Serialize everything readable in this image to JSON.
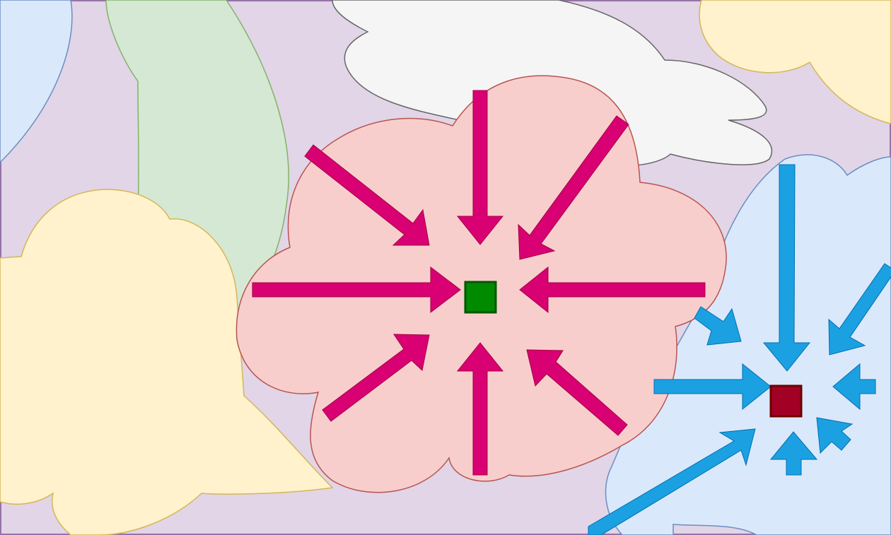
{
  "diagram": {
    "description_colors": {
      "background": "#e1d5e7",
      "background_border": "#9673a6",
      "pink_cloud_fill": "#f8cecc",
      "pink_cloud_stroke": "#b85450",
      "magenta_arrow": "#d80073",
      "magenta_arrow_stroke": "#a50040",
      "green_square": "#008a00",
      "green_square_stroke": "#005700",
      "blue_cloud_fill": "#dae8fc",
      "blue_cloud_stroke": "#6c8ebf",
      "blue_arrow": "#1ba1e2",
      "blue_arrow_stroke": "#006eaf",
      "red_square": "#a20025",
      "red_square_stroke": "#6f0000",
      "yellow_cloud_fill": "#fff2cc",
      "yellow_cloud_stroke": "#d6b656",
      "green_leaf_fill": "#d5e8d4",
      "green_leaf_stroke": "#82b366",
      "white_cloud_fill": "#f5f5f5",
      "white_cloud_stroke": "#666666"
    },
    "targets": [
      {
        "name": "green-target-square",
        "incoming_arrows": 8
      },
      {
        "name": "red-target-square",
        "incoming_arrows": 8
      }
    ]
  }
}
